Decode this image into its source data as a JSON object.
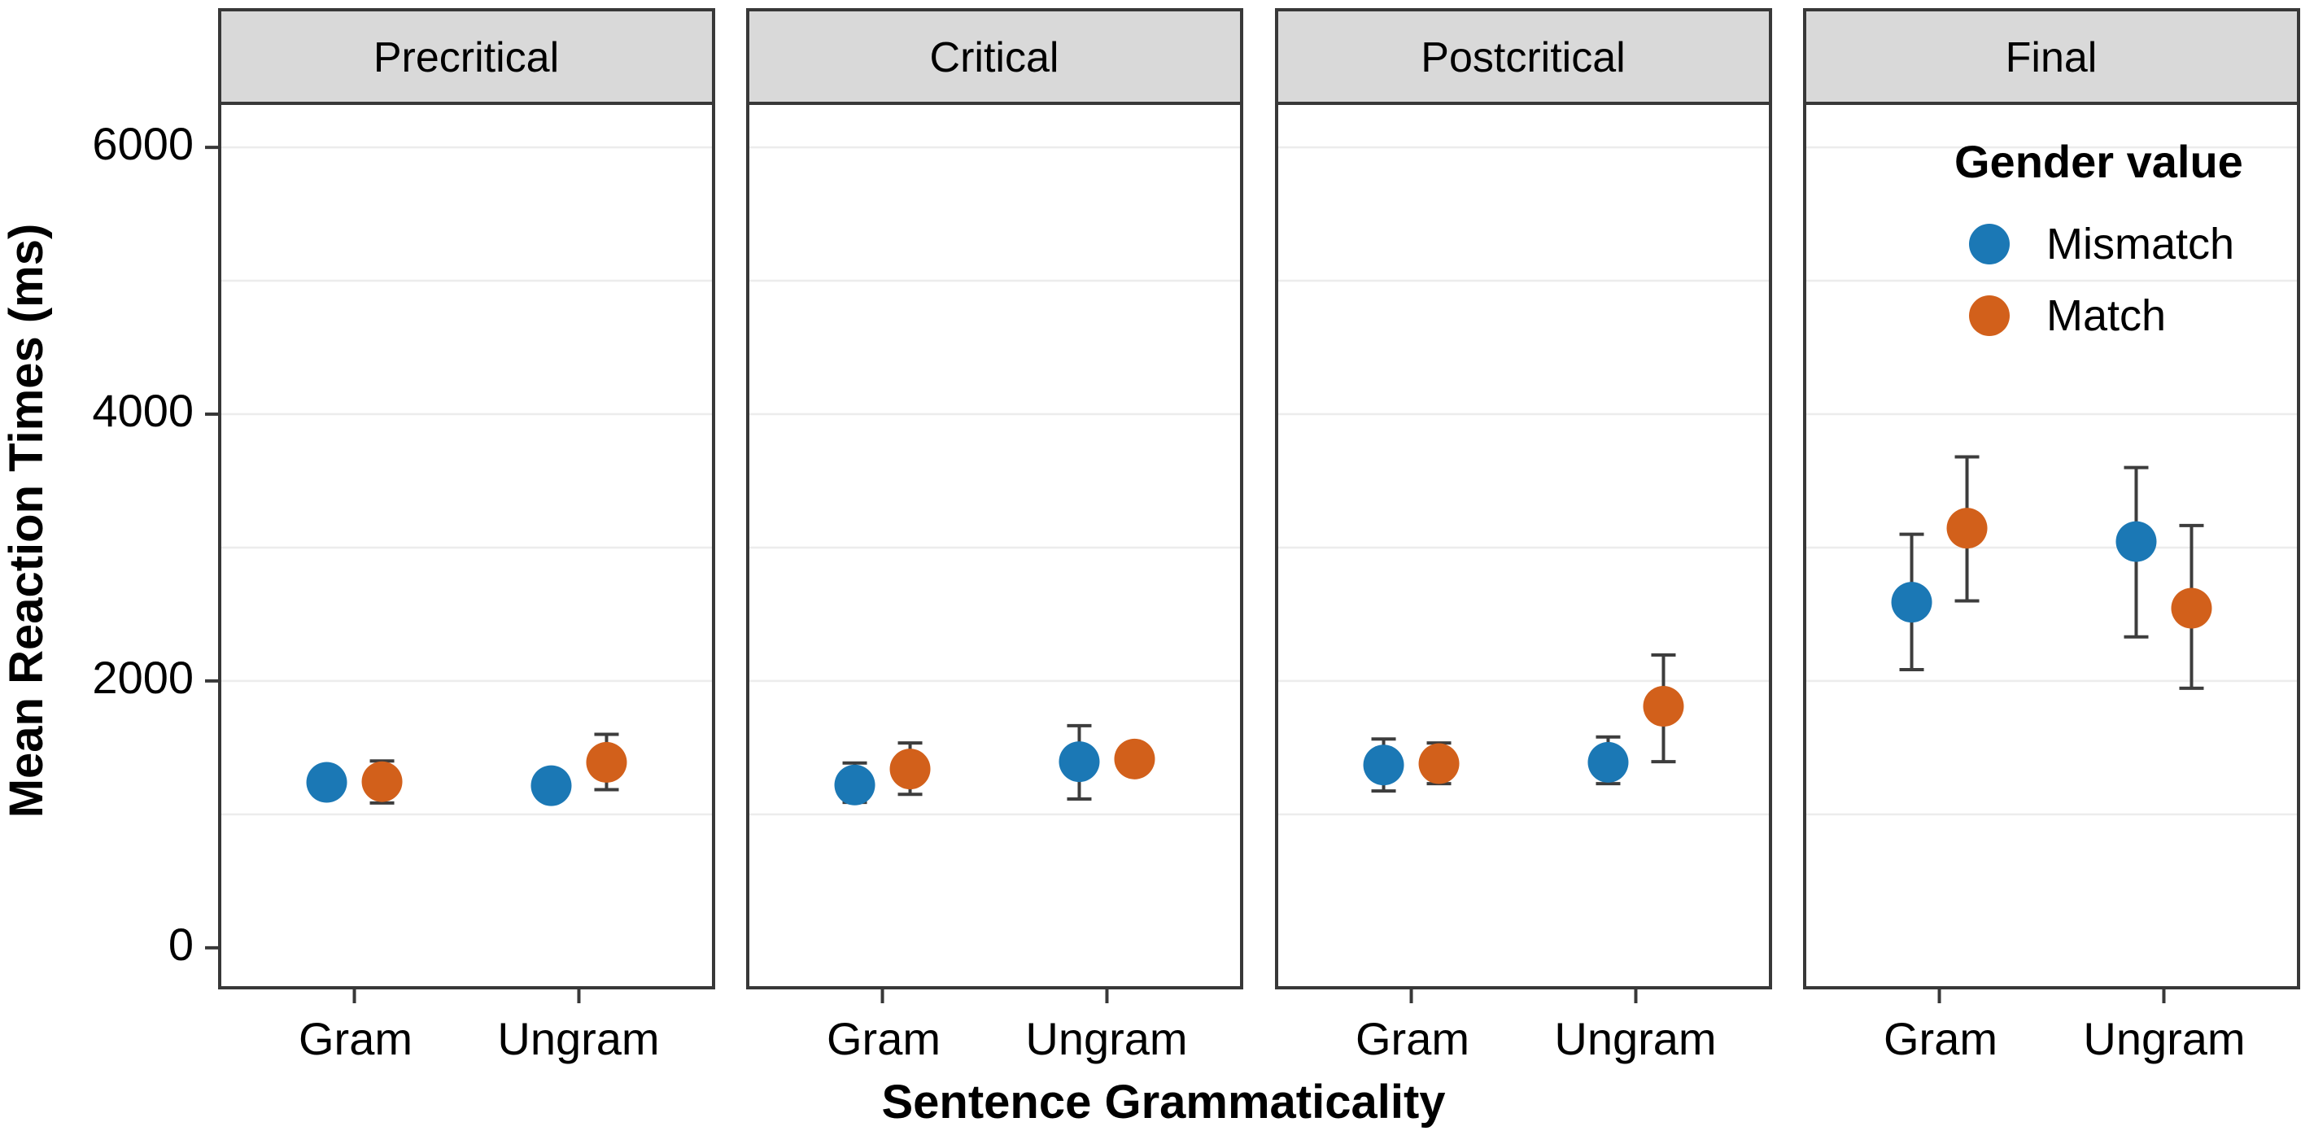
{
  "chart_data": {
    "type": "scatter",
    "description": "Faceted point-range plot of mean reaction times by sentence grammaticality and gender value",
    "facet_labels": [
      "Precritical",
      "Critical",
      "Postcritical",
      "Final"
    ],
    "categories": [
      "Gram",
      "Ungram"
    ],
    "xlabel": "Sentence Grammaticality",
    "ylabel": "Mean Reaction Times (ms)",
    "yticks": [
      0,
      2000,
      4000,
      6000
    ],
    "ytick_labels": [
      "0",
      "2000",
      "4000",
      "6000"
    ],
    "ylim": [
      -300,
      6330
    ],
    "grid_values": [
      1000,
      2000,
      3000,
      4000,
      5000,
      6000
    ],
    "legend": {
      "title": "Gender value",
      "position": "inside top-right of Final panel"
    },
    "colors": {
      "mismatch": "#1b78b5",
      "match": "#d2601b",
      "panel_border": "#383838",
      "strip_fill": "#d9d9d9",
      "gridline": "#ececec",
      "error_bar": "#3d3d3d"
    },
    "series": [
      {
        "name": "Mismatch",
        "color": "#1b78b5",
        "points": [
          {
            "facet": "Precritical",
            "x": "Gram",
            "mean": 1240,
            "lo": null,
            "hi": null
          },
          {
            "facet": "Precritical",
            "x": "Ungram",
            "mean": 1215,
            "lo": null,
            "hi": null
          },
          {
            "facet": "Critical",
            "x": "Gram",
            "mean": 1220,
            "lo": 1090,
            "hi": 1385
          },
          {
            "facet": "Critical",
            "x": "Ungram",
            "mean": 1395,
            "lo": 1115,
            "hi": 1665
          },
          {
            "facet": "Postcritical",
            "x": "Gram",
            "mean": 1370,
            "lo": 1175,
            "hi": 1565
          },
          {
            "facet": "Postcritical",
            "x": "Ungram",
            "mean": 1390,
            "lo": 1230,
            "hi": 1580
          },
          {
            "facet": "Final",
            "x": "Gram",
            "mean": 2590,
            "lo": 2085,
            "hi": 3100
          },
          {
            "facet": "Final",
            "x": "Ungram",
            "mean": 3045,
            "lo": 2330,
            "hi": 3600
          }
        ]
      },
      {
        "name": "Match",
        "color": "#d2601b",
        "points": [
          {
            "facet": "Precritical",
            "x": "Gram",
            "mean": 1245,
            "lo": 1085,
            "hi": 1400
          },
          {
            "facet": "Precritical",
            "x": "Ungram",
            "mean": 1390,
            "lo": 1185,
            "hi": 1600
          },
          {
            "facet": "Critical",
            "x": "Gram",
            "mean": 1340,
            "lo": 1150,
            "hi": 1535
          },
          {
            "facet": "Critical",
            "x": "Ungram",
            "mean": 1415,
            "lo": null,
            "hi": null
          },
          {
            "facet": "Postcritical",
            "x": "Gram",
            "mean": 1380,
            "lo": 1230,
            "hi": 1535
          },
          {
            "facet": "Postcritical",
            "x": "Ungram",
            "mean": 1810,
            "lo": 1395,
            "hi": 2195
          },
          {
            "facet": "Final",
            "x": "Gram",
            "mean": 3145,
            "lo": 2600,
            "hi": 3680
          },
          {
            "facet": "Final",
            "x": "Ungram",
            "mean": 2545,
            "lo": 1945,
            "hi": 3165
          }
        ]
      }
    ]
  }
}
